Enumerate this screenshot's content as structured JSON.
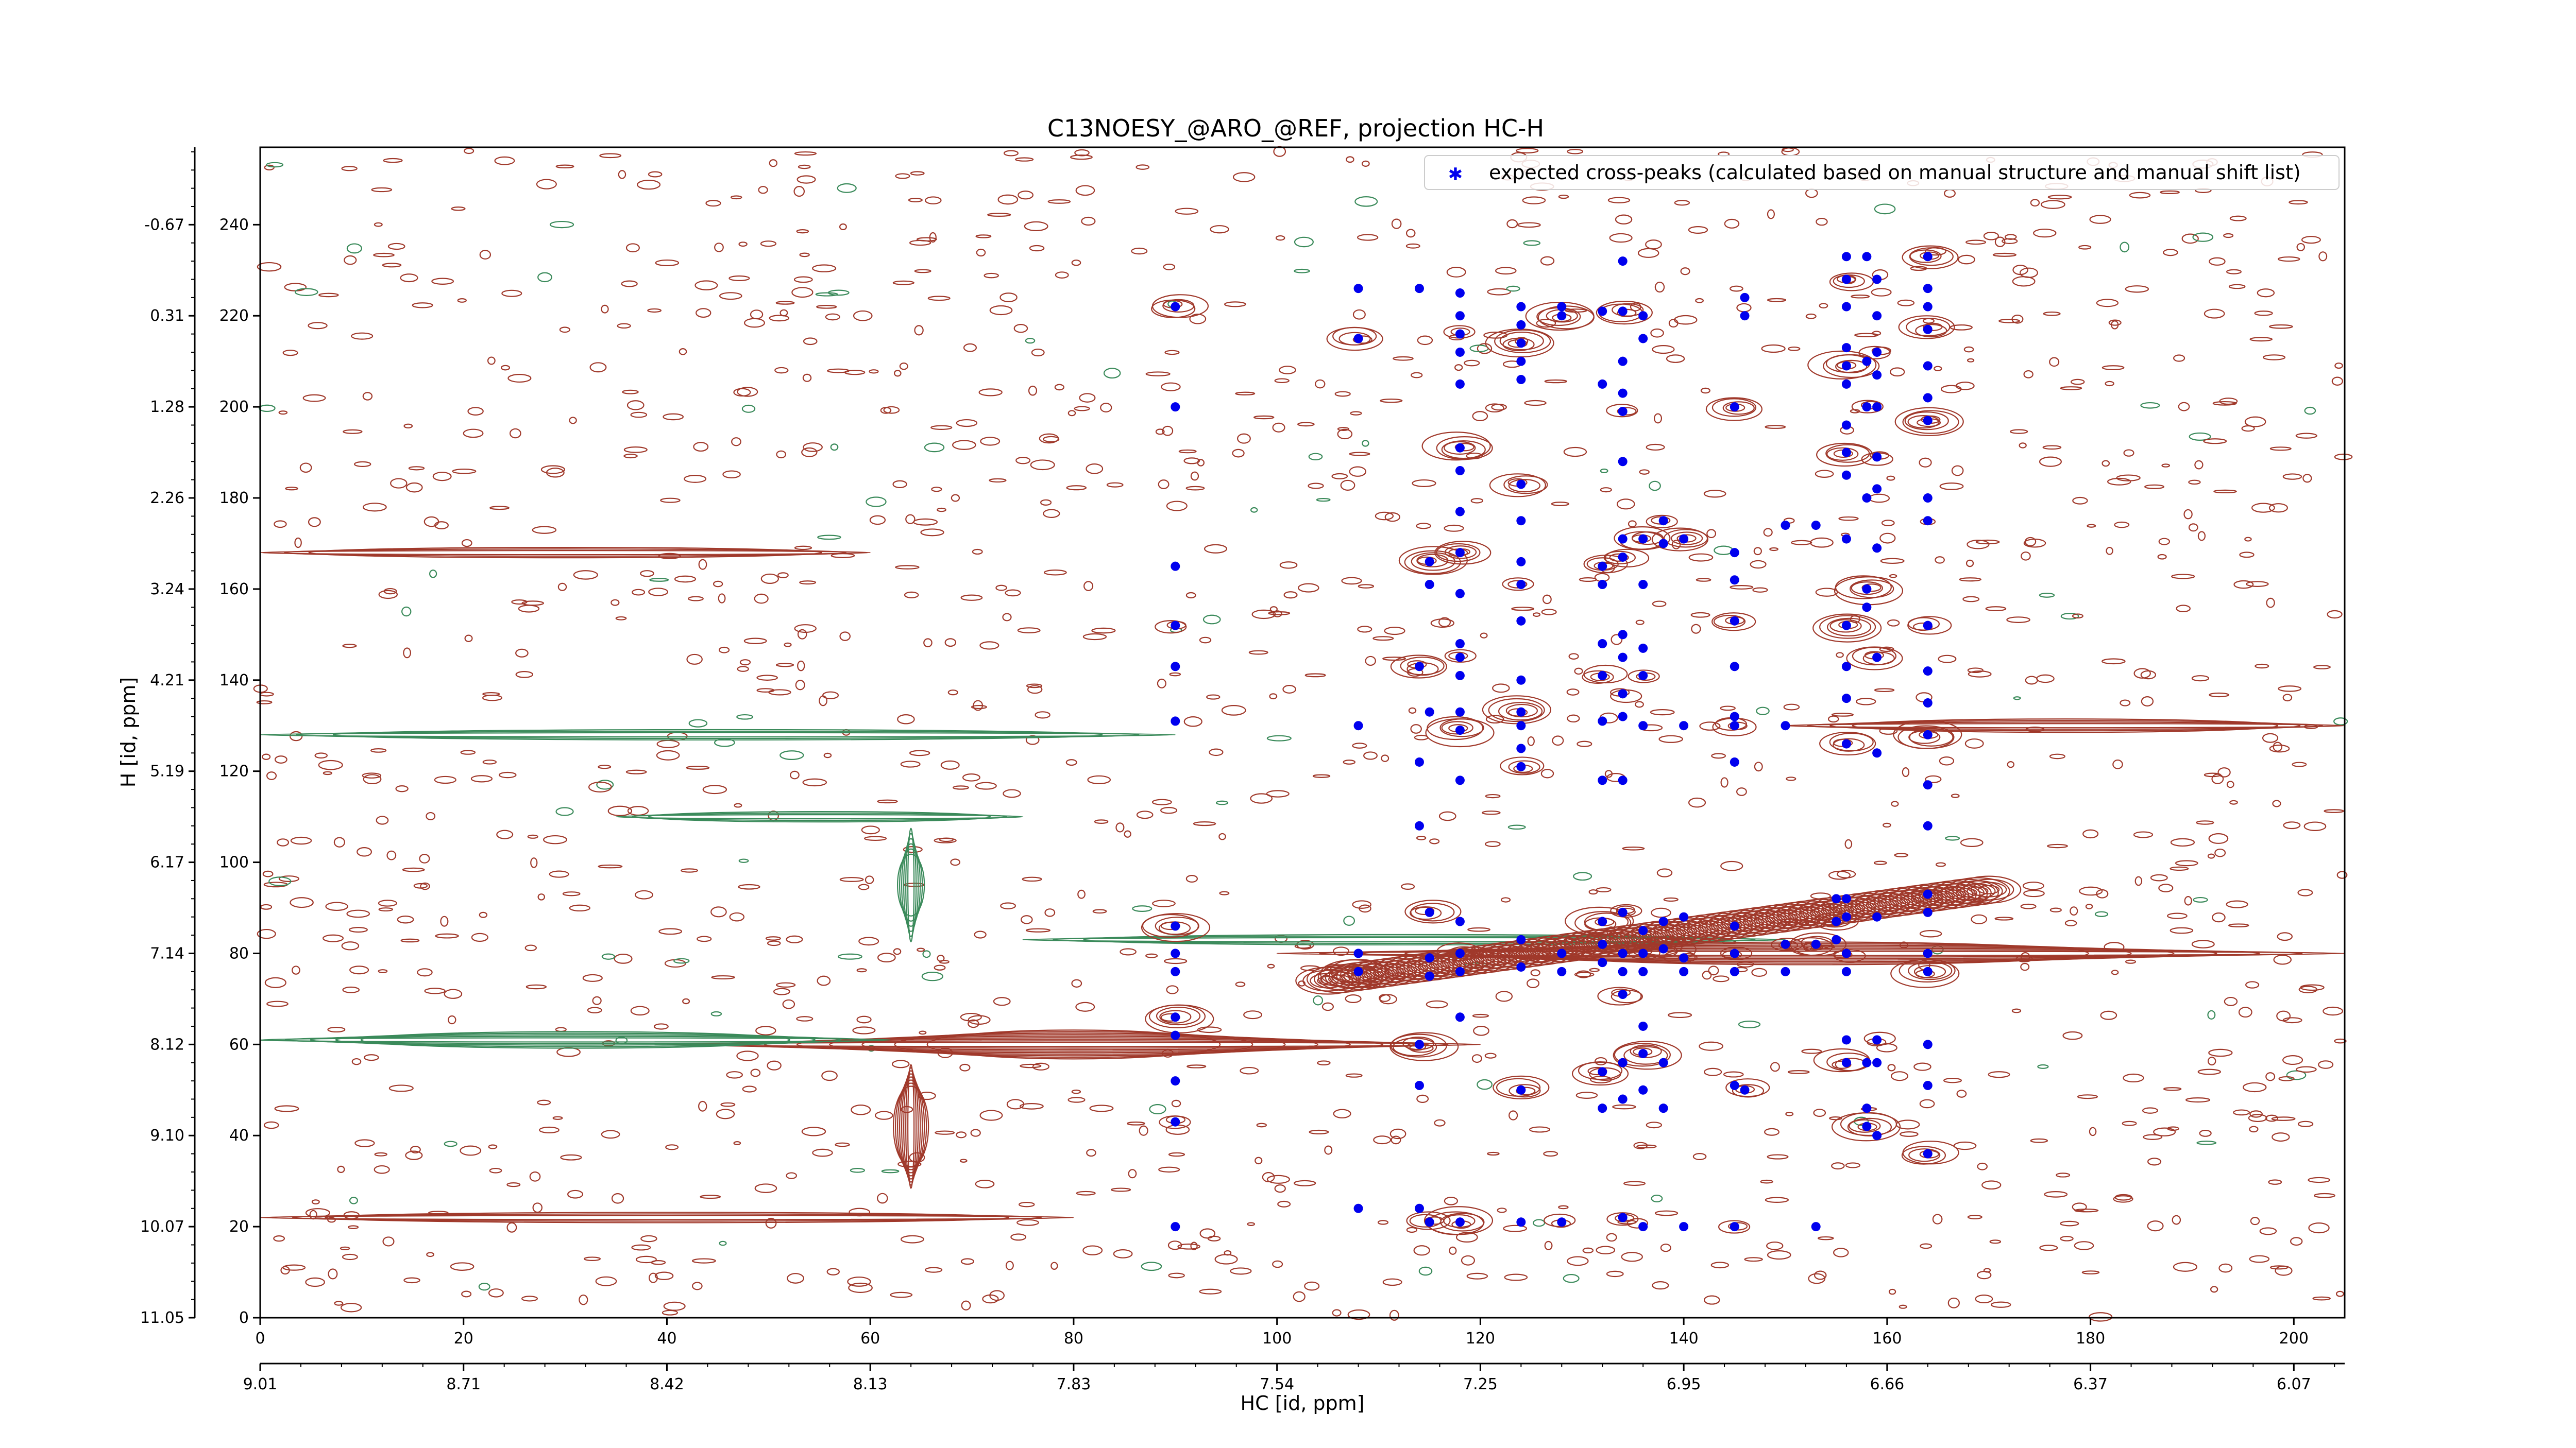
{
  "chart_data": {
    "type": "scatter",
    "title": "C13NOESY_@ARO_@REF, projection HC-H",
    "xlabel": "HC [id, ppm]",
    "ylabel": "H [id, ppm]",
    "xlim": [
      0,
      205
    ],
    "ylim": [
      0,
      257
    ],
    "x_ticks_primary": [
      "0",
      "20",
      "40",
      "60",
      "80",
      "100",
      "120",
      "140",
      "160",
      "180",
      "200"
    ],
    "x_ticks_ppm": [
      "9.01",
      "8.71",
      "8.42",
      "8.13",
      "7.83",
      "7.54",
      "7.25",
      "6.95",
      "6.66",
      "6.37",
      "6.07"
    ],
    "y_ticks_primary": [
      "0",
      "20",
      "40",
      "60",
      "80",
      "100",
      "120",
      "140",
      "160",
      "180",
      "200",
      "220",
      "240"
    ],
    "y_ticks_ppm": [
      "11.05",
      "10.07",
      "9.10",
      "8.12",
      "7.14",
      "6.17",
      "5.19",
      "4.21",
      "3.24",
      "2.26",
      "1.28",
      "0.31",
      "-0.67"
    ],
    "legend": {
      "position": "top-right",
      "entries": [
        "expected cross-peaks (calculated based on manual structure and manual shift list)"
      ]
    },
    "colors": {
      "contour_positive": "#a0392b",
      "contour_negative": "#3a8a5a",
      "peaks": "#0000ee"
    },
    "series": [
      {
        "name": "expected cross-peaks (calculated based on manual structure and manual shift list)",
        "points": [
          [
            90,
            222
          ],
          [
            90,
            200
          ],
          [
            90,
            165
          ],
          [
            90,
            152
          ],
          [
            90,
            143
          ],
          [
            90,
            131
          ],
          [
            90,
            86
          ],
          [
            90,
            80
          ],
          [
            90,
            76
          ],
          [
            90,
            66
          ],
          [
            90,
            62
          ],
          [
            90,
            52
          ],
          [
            90,
            43
          ],
          [
            90,
            20
          ],
          [
            108,
            226
          ],
          [
            108,
            215
          ],
          [
            108,
            130
          ],
          [
            108,
            80
          ],
          [
            108,
            76
          ],
          [
            108,
            24
          ],
          [
            114,
            226
          ],
          [
            114,
            143
          ],
          [
            114,
            122
          ],
          [
            114,
            108
          ],
          [
            114,
            60
          ],
          [
            114,
            51
          ],
          [
            114,
            24
          ],
          [
            115,
            166
          ],
          [
            115,
            161
          ],
          [
            115,
            133
          ],
          [
            115,
            89
          ],
          [
            115,
            79
          ],
          [
            115,
            75
          ],
          [
            115,
            21
          ],
          [
            118,
            225
          ],
          [
            118,
            220
          ],
          [
            118,
            216
          ],
          [
            118,
            212
          ],
          [
            118,
            205
          ],
          [
            118,
            191
          ],
          [
            118,
            186
          ],
          [
            118,
            177
          ],
          [
            118,
            168
          ],
          [
            118,
            159
          ],
          [
            118,
            148
          ],
          [
            118,
            145
          ],
          [
            118,
            141
          ],
          [
            118,
            133
          ],
          [
            118,
            129
          ],
          [
            118,
            118
          ],
          [
            118,
            87
          ],
          [
            118,
            80
          ],
          [
            118,
            76
          ],
          [
            118,
            66
          ],
          [
            118,
            21
          ],
          [
            124,
            222
          ],
          [
            124,
            218
          ],
          [
            124,
            214
          ],
          [
            124,
            210
          ],
          [
            124,
            206
          ],
          [
            124,
            183
          ],
          [
            124,
            175
          ],
          [
            124,
            166
          ],
          [
            124,
            161
          ],
          [
            124,
            153
          ],
          [
            124,
            140
          ],
          [
            124,
            133
          ],
          [
            124,
            130
          ],
          [
            124,
            125
          ],
          [
            124,
            121
          ],
          [
            124,
            83
          ],
          [
            124,
            77
          ],
          [
            124,
            50
          ],
          [
            124,
            21
          ],
          [
            128,
            222
          ],
          [
            128,
            220
          ],
          [
            128,
            80
          ],
          [
            128,
            76
          ],
          [
            128,
            21
          ],
          [
            132,
            221
          ],
          [
            132,
            205
          ],
          [
            132,
            165
          ],
          [
            132,
            161
          ],
          [
            132,
            148
          ],
          [
            132,
            141
          ],
          [
            132,
            131
          ],
          [
            132,
            118
          ],
          [
            132,
            87
          ],
          [
            132,
            82
          ],
          [
            132,
            78
          ],
          [
            132,
            54
          ],
          [
            132,
            46
          ],
          [
            134,
            232
          ],
          [
            134,
            221
          ],
          [
            134,
            210
          ],
          [
            134,
            203
          ],
          [
            134,
            199
          ],
          [
            134,
            188
          ],
          [
            134,
            171
          ],
          [
            134,
            167
          ],
          [
            134,
            150
          ],
          [
            134,
            145
          ],
          [
            134,
            137
          ],
          [
            134,
            132
          ],
          [
            134,
            118
          ],
          [
            134,
            89
          ],
          [
            134,
            80
          ],
          [
            134,
            76
          ],
          [
            134,
            71
          ],
          [
            134,
            56
          ],
          [
            134,
            48
          ],
          [
            134,
            22
          ],
          [
            136,
            220
          ],
          [
            136,
            215
          ],
          [
            136,
            171
          ],
          [
            136,
            161
          ],
          [
            136,
            147
          ],
          [
            136,
            141
          ],
          [
            136,
            130
          ],
          [
            136,
            85
          ],
          [
            136,
            80
          ],
          [
            136,
            76
          ],
          [
            136,
            64
          ],
          [
            136,
            58
          ],
          [
            136,
            50
          ],
          [
            136,
            20
          ],
          [
            138,
            175
          ],
          [
            138,
            170
          ],
          [
            138,
            87
          ],
          [
            138,
            81
          ],
          [
            138,
            56
          ],
          [
            138,
            46
          ],
          [
            140,
            171
          ],
          [
            140,
            130
          ],
          [
            140,
            88
          ],
          [
            140,
            79
          ],
          [
            140,
            76
          ],
          [
            140,
            20
          ],
          [
            145,
            200
          ],
          [
            145,
            168
          ],
          [
            145,
            162
          ],
          [
            145,
            153
          ],
          [
            145,
            143
          ],
          [
            145,
            132
          ],
          [
            145,
            130
          ],
          [
            145,
            122
          ],
          [
            145,
            86
          ],
          [
            145,
            80
          ],
          [
            145,
            76
          ],
          [
            145,
            51
          ],
          [
            145,
            20
          ],
          [
            146,
            224
          ],
          [
            146,
            220
          ],
          [
            146,
            50
          ],
          [
            150,
            174
          ],
          [
            150,
            130
          ],
          [
            150,
            82
          ],
          [
            150,
            76
          ],
          [
            153,
            174
          ],
          [
            153,
            82
          ],
          [
            153,
            20
          ],
          [
            155,
            83
          ],
          [
            155,
            87
          ],
          [
            155,
            92
          ],
          [
            156,
            233
          ],
          [
            156,
            228
          ],
          [
            156,
            222
          ],
          [
            156,
            213
          ],
          [
            156,
            209
          ],
          [
            156,
            205
          ],
          [
            156,
            196
          ],
          [
            156,
            190
          ],
          [
            156,
            185
          ],
          [
            156,
            171
          ],
          [
            156,
            152
          ],
          [
            156,
            143
          ],
          [
            156,
            136
          ],
          [
            156,
            126
          ],
          [
            156,
            92
          ],
          [
            156,
            88
          ],
          [
            156,
            80
          ],
          [
            156,
            76
          ],
          [
            156,
            61
          ],
          [
            156,
            56
          ],
          [
            158,
            233
          ],
          [
            158,
            210
          ],
          [
            158,
            200
          ],
          [
            158,
            180
          ],
          [
            158,
            156
          ],
          [
            158,
            160
          ],
          [
            158,
            56
          ],
          [
            158,
            46
          ],
          [
            158,
            42
          ],
          [
            159,
            228
          ],
          [
            159,
            220
          ],
          [
            159,
            212
          ],
          [
            159,
            207
          ],
          [
            159,
            200
          ],
          [
            159,
            189
          ],
          [
            159,
            182
          ],
          [
            159,
            169
          ],
          [
            159,
            145
          ],
          [
            159,
            124
          ],
          [
            159,
            88
          ],
          [
            159,
            61
          ],
          [
            159,
            56
          ],
          [
            159,
            40
          ],
          [
            164,
            233
          ],
          [
            164,
            226
          ],
          [
            164,
            222
          ],
          [
            164,
            217
          ],
          [
            164,
            209
          ],
          [
            164,
            202
          ],
          [
            164,
            197
          ],
          [
            164,
            180
          ],
          [
            164,
            175
          ],
          [
            164,
            152
          ],
          [
            164,
            142
          ],
          [
            164,
            135
          ],
          [
            164,
            128
          ],
          [
            164,
            117
          ],
          [
            164,
            108
          ],
          [
            164,
            93
          ],
          [
            164,
            89
          ],
          [
            164,
            80
          ],
          [
            164,
            76
          ],
          [
            164,
            60
          ],
          [
            164,
            51
          ],
          [
            164,
            36
          ]
        ]
      }
    ]
  }
}
